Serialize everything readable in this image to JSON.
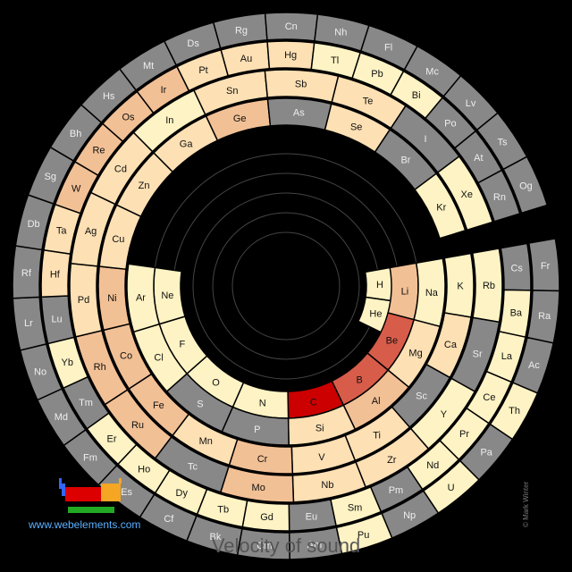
{
  "title": "Velocity of sound",
  "site_link": "www.webelements.com",
  "copyright": "© Mark Winter",
  "colors": {
    "gray": "#888888",
    "pale": "#fef3c4",
    "light": "#fde0b4",
    "medium": "#f2c095",
    "high": "#e8a07e",
    "top": "#d85c4a",
    "max": "#cc0000",
    "outline": "#000000"
  },
  "elements": [
    {
      "symbol": "H",
      "level": "pale"
    },
    {
      "symbol": "He",
      "level": "pale"
    },
    {
      "symbol": "Li",
      "level": "medium"
    },
    {
      "symbol": "Be",
      "level": "top"
    },
    {
      "symbol": "B",
      "level": "top"
    },
    {
      "symbol": "C",
      "level": "max"
    },
    {
      "symbol": "N",
      "level": "pale"
    },
    {
      "symbol": "O",
      "level": "pale"
    },
    {
      "symbol": "F",
      "level": "pale"
    },
    {
      "symbol": "Ne",
      "level": "pale"
    },
    {
      "symbol": "Na",
      "level": "pale"
    },
    {
      "symbol": "Mg",
      "level": "light"
    },
    {
      "symbol": "Al",
      "level": "medium"
    },
    {
      "symbol": "Si",
      "level": "light"
    },
    {
      "symbol": "P",
      "level": "gray"
    },
    {
      "symbol": "S",
      "level": "gray"
    },
    {
      "symbol": "Cl",
      "level": "pale"
    },
    {
      "symbol": "Ar",
      "level": "pale"
    },
    {
      "symbol": "K",
      "level": "pale"
    },
    {
      "symbol": "Ca",
      "level": "light"
    },
    {
      "symbol": "Sc",
      "level": "gray"
    },
    {
      "symbol": "Ti",
      "level": "light"
    },
    {
      "symbol": "V",
      "level": "light"
    },
    {
      "symbol": "Cr",
      "level": "medium"
    },
    {
      "symbol": "Mn",
      "level": "light"
    },
    {
      "symbol": "Fe",
      "level": "medium"
    },
    {
      "symbol": "Co",
      "level": "medium"
    },
    {
      "symbol": "Ni",
      "level": "medium"
    },
    {
      "symbol": "Cu",
      "level": "light"
    },
    {
      "symbol": "Zn",
      "level": "light"
    },
    {
      "symbol": "Ga",
      "level": "light"
    },
    {
      "symbol": "Ge",
      "level": "medium"
    },
    {
      "symbol": "As",
      "level": "gray"
    },
    {
      "symbol": "Se",
      "level": "light"
    },
    {
      "symbol": "Br",
      "level": "gray"
    },
    {
      "symbol": "Kr",
      "level": "pale"
    },
    {
      "symbol": "Rb",
      "level": "pale"
    },
    {
      "symbol": "Sr",
      "level": "gray"
    },
    {
      "symbol": "Y",
      "level": "pale"
    },
    {
      "symbol": "Zr",
      "level": "light"
    },
    {
      "symbol": "Nb",
      "level": "light"
    },
    {
      "symbol": "Mo",
      "level": "medium"
    },
    {
      "symbol": "Tc",
      "level": "gray"
    },
    {
      "symbol": "Ru",
      "level": "medium"
    },
    {
      "symbol": "Rh",
      "level": "medium"
    },
    {
      "symbol": "Pd",
      "level": "light"
    },
    {
      "symbol": "Ag",
      "level": "light"
    },
    {
      "symbol": "Cd",
      "level": "light"
    },
    {
      "symbol": "In",
      "level": "pale"
    },
    {
      "symbol": "Sn",
      "level": "light"
    },
    {
      "symbol": "Sb",
      "level": "light"
    },
    {
      "symbol": "Te",
      "level": "light"
    },
    {
      "symbol": "I",
      "level": "gray"
    },
    {
      "symbol": "Xe",
      "level": "pale"
    },
    {
      "symbol": "Cs",
      "level": "gray"
    },
    {
      "symbol": "Ba",
      "level": "pale"
    },
    {
      "symbol": "La",
      "level": "pale"
    },
    {
      "symbol": "Ce",
      "level": "pale"
    },
    {
      "symbol": "Pr",
      "level": "pale"
    },
    {
      "symbol": "Nd",
      "level": "pale"
    },
    {
      "symbol": "Pm",
      "level": "gray"
    },
    {
      "symbol": "Sm",
      "level": "pale"
    },
    {
      "symbol": "Eu",
      "level": "gray"
    },
    {
      "symbol": "Gd",
      "level": "pale"
    },
    {
      "symbol": "Tb",
      "level": "pale"
    },
    {
      "symbol": "Dy",
      "level": "pale"
    },
    {
      "symbol": "Ho",
      "level": "pale"
    },
    {
      "symbol": "Er",
      "level": "pale"
    },
    {
      "symbol": "Tm",
      "level": "gray"
    },
    {
      "symbol": "Yb",
      "level": "pale"
    },
    {
      "symbol": "Lu",
      "level": "gray"
    },
    {
      "symbol": "Hf",
      "level": "light"
    },
    {
      "symbol": "Ta",
      "level": "light"
    },
    {
      "symbol": "W",
      "level": "medium"
    },
    {
      "symbol": "Re",
      "level": "medium"
    },
    {
      "symbol": "Os",
      "level": "medium"
    },
    {
      "symbol": "Ir",
      "level": "medium"
    },
    {
      "symbol": "Pt",
      "level": "light"
    },
    {
      "symbol": "Au",
      "level": "light"
    },
    {
      "symbol": "Hg",
      "level": "light"
    },
    {
      "symbol": "Tl",
      "level": "pale"
    },
    {
      "symbol": "Pb",
      "level": "pale"
    },
    {
      "symbol": "Bi",
      "level": "pale"
    },
    {
      "symbol": "Po",
      "level": "gray"
    },
    {
      "symbol": "At",
      "level": "gray"
    },
    {
      "symbol": "Rn",
      "level": "gray"
    },
    {
      "symbol": "Fr",
      "level": "gray"
    },
    {
      "symbol": "Ra",
      "level": "gray"
    },
    {
      "symbol": "Ac",
      "level": "gray"
    },
    {
      "symbol": "Th",
      "level": "pale"
    },
    {
      "symbol": "Pa",
      "level": "gray"
    },
    {
      "symbol": "U",
      "level": "pale"
    },
    {
      "symbol": "Np",
      "level": "gray"
    },
    {
      "symbol": "Pu",
      "level": "pale"
    },
    {
      "symbol": "Am",
      "level": "gray"
    },
    {
      "symbol": "Cm",
      "level": "gray"
    },
    {
      "symbol": "Bk",
      "level": "gray"
    },
    {
      "symbol": "Cf",
      "level": "gray"
    },
    {
      "symbol": "Es",
      "level": "gray"
    },
    {
      "symbol": "Fm",
      "level": "gray"
    },
    {
      "symbol": "Md",
      "level": "gray"
    },
    {
      "symbol": "No",
      "level": "gray"
    },
    {
      "symbol": "Lr",
      "level": "gray"
    },
    {
      "symbol": "Rf",
      "level": "gray"
    },
    {
      "symbol": "Db",
      "level": "gray"
    },
    {
      "symbol": "Sg",
      "level": "gray"
    },
    {
      "symbol": "Bh",
      "level": "gray"
    },
    {
      "symbol": "Hs",
      "level": "gray"
    },
    {
      "symbol": "Mt",
      "level": "gray"
    },
    {
      "symbol": "Ds",
      "level": "gray"
    },
    {
      "symbol": "Rg",
      "level": "gray"
    },
    {
      "symbol": "Cn",
      "level": "gray"
    },
    {
      "symbol": "Nh",
      "level": "gray"
    },
    {
      "symbol": "Fl",
      "level": "gray"
    },
    {
      "symbol": "Mc",
      "level": "gray"
    },
    {
      "symbol": "Lv",
      "level": "gray"
    },
    {
      "symbol": "Ts",
      "level": "gray"
    },
    {
      "symbol": "Og",
      "level": "gray"
    }
  ]
}
